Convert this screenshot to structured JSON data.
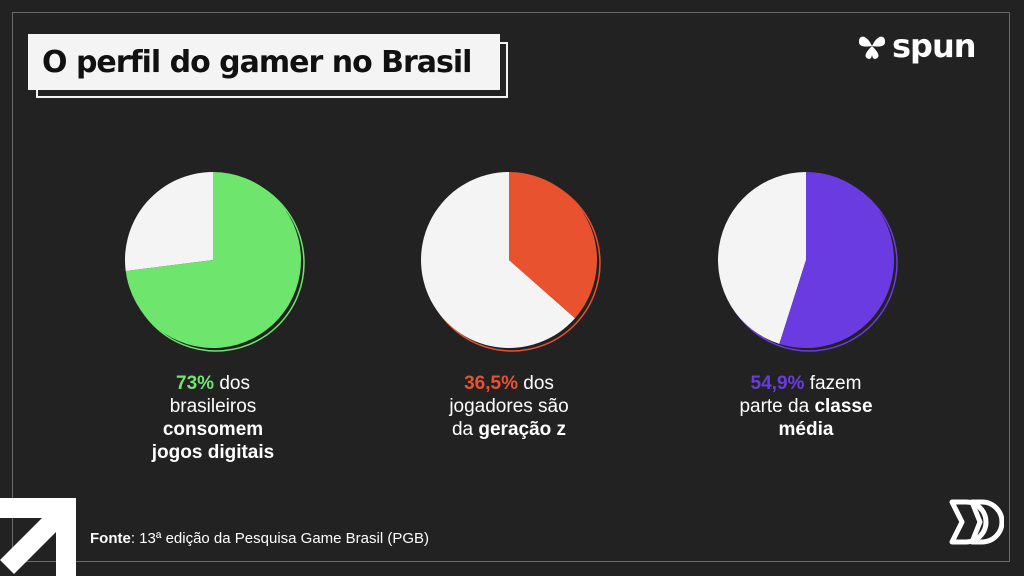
{
  "title": "O perfil do gamer no Brasil",
  "brand": {
    "name": "spun",
    "mark_icon": "spun-leaf-icon"
  },
  "colors": {
    "background": "#222222",
    "green": "#6ee66e",
    "orange": "#e9522e",
    "purple": "#6a3be0",
    "base": "#f4f4f4"
  },
  "chart_data": [
    {
      "type": "pie",
      "values": [
        73,
        27
      ],
      "highlight_color": "#6ee66e",
      "caption": {
        "value": "73%",
        "line1": " dos",
        "line2": "brasileiros",
        "line3": "consomem",
        "line4": "jogos digitais"
      }
    },
    {
      "type": "pie",
      "values": [
        36.5,
        63.5
      ],
      "highlight_color": "#e9522e",
      "caption": {
        "value": "36,5%",
        "line1": " dos",
        "line2": "jogadores são",
        "line3a": "da ",
        "line3b": "geração z"
      }
    },
    {
      "type": "pie",
      "values": [
        54.9,
        45.1
      ],
      "highlight_color": "#6a3be0",
      "caption": {
        "value": "54,9%",
        "line1": " fazem",
        "line2a": "parte da ",
        "line2b": "classe",
        "line3": "média"
      }
    }
  ],
  "footer": {
    "source_label": "Fonte",
    "source_text": ": 13ª edição da Pesquisa Game Brasil (PGB)",
    "arrow_icon": "arrow-up-right-icon",
    "logo_icon": "dd-logo-icon"
  }
}
